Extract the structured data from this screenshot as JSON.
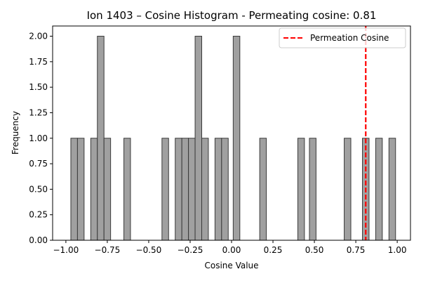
{
  "chart_data": {
    "type": "bar",
    "title": "Ion 1403 – Cosine Histogram - Permeating cosine: 0.81",
    "xlabel": "Cosine Value",
    "ylabel": "Frequency",
    "xlim": [
      -1.08,
      1.08
    ],
    "ylim": [
      0,
      2.1
    ],
    "grid": false,
    "legend_position": "top-right",
    "x_ticks": [
      {
        "value": -1.0,
        "label": "−1.00"
      },
      {
        "value": -0.75,
        "label": "−0.75"
      },
      {
        "value": -0.5,
        "label": "−0.50"
      },
      {
        "value": -0.25,
        "label": "−0.25"
      },
      {
        "value": 0.0,
        "label": "0.00"
      },
      {
        "value": 0.25,
        "label": "0.25"
      },
      {
        "value": 0.5,
        "label": "0.50"
      },
      {
        "value": 0.75,
        "label": "0.75"
      },
      {
        "value": 1.0,
        "label": "1.00"
      }
    ],
    "y_ticks": [
      {
        "value": 0.0,
        "label": "0.00"
      },
      {
        "value": 0.25,
        "label": "0.25"
      },
      {
        "value": 0.5,
        "label": "0.50"
      },
      {
        "value": 0.75,
        "label": "0.75"
      },
      {
        "value": 1.0,
        "label": "1.00"
      },
      {
        "value": 1.25,
        "label": "1.25"
      },
      {
        "value": 1.5,
        "label": "1.50"
      },
      {
        "value": 1.75,
        "label": "1.75"
      },
      {
        "value": 2.0,
        "label": "2.00"
      }
    ],
    "bin_width": 0.04,
    "bars": [
      {
        "x0": -0.97,
        "x1": -0.93,
        "count": 1
      },
      {
        "x0": -0.93,
        "x1": -0.89,
        "count": 1
      },
      {
        "x0": -0.85,
        "x1": -0.81,
        "count": 1
      },
      {
        "x0": -0.81,
        "x1": -0.77,
        "count": 2
      },
      {
        "x0": -0.77,
        "x1": -0.73,
        "count": 1
      },
      {
        "x0": -0.65,
        "x1": -0.61,
        "count": 1
      },
      {
        "x0": -0.42,
        "x1": -0.38,
        "count": 1
      },
      {
        "x0": -0.34,
        "x1": -0.3,
        "count": 1
      },
      {
        "x0": -0.3,
        "x1": -0.26,
        "count": 1
      },
      {
        "x0": -0.26,
        "x1": -0.22,
        "count": 1
      },
      {
        "x0": -0.22,
        "x1": -0.18,
        "count": 2
      },
      {
        "x0": -0.18,
        "x1": -0.14,
        "count": 1
      },
      {
        "x0": -0.1,
        "x1": -0.06,
        "count": 1
      },
      {
        "x0": -0.06,
        "x1": -0.02,
        "count": 1
      },
      {
        "x0": 0.01,
        "x1": 0.05,
        "count": 2
      },
      {
        "x0": 0.17,
        "x1": 0.21,
        "count": 1
      },
      {
        "x0": 0.4,
        "x1": 0.44,
        "count": 1
      },
      {
        "x0": 0.47,
        "x1": 0.51,
        "count": 1
      },
      {
        "x0": 0.68,
        "x1": 0.72,
        "count": 1
      },
      {
        "x0": 0.79,
        "x1": 0.83,
        "count": 1
      },
      {
        "x0": 0.87,
        "x1": 0.91,
        "count": 1
      },
      {
        "x0": 0.95,
        "x1": 0.99,
        "count": 1
      }
    ],
    "vline": {
      "x": 0.81,
      "label": "Permeation Cosine",
      "color": "#ff0000",
      "style": "dashed"
    },
    "colors": {
      "bar_fill": "#a0a0a0",
      "bar_edge": "#3a3a3a",
      "axis": "#000000"
    }
  }
}
